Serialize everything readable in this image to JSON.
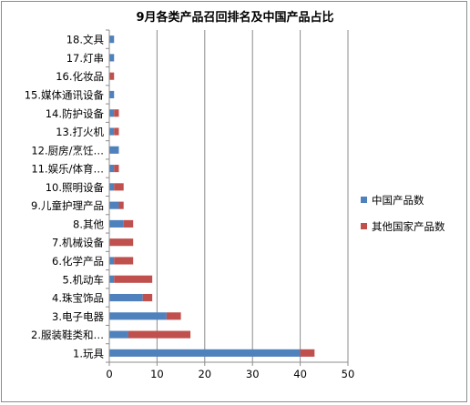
{
  "chart_data": {
    "type": "bar",
    "orientation": "horizontal",
    "stacked": true,
    "title": "9月各类产品召回排名及中国产品占比",
    "xlabel": "",
    "ylabel": "",
    "xlim": [
      0,
      50
    ],
    "x_ticks": [
      "0",
      "10",
      "20",
      "30",
      "40",
      "50"
    ],
    "grid": "vertical major gridlines",
    "legend_position": "right",
    "categories": [
      "1.玩具",
      "2.服装鞋类和…",
      "3.电子电器",
      "4.珠宝饰品",
      "5.机动车",
      "6.化学产品",
      "7.机械设备",
      "8.其他",
      "9.儿童护理产品",
      "10.照明设备",
      "11.娱乐/体育…",
      "12.厨房/烹饪…",
      "13.打火机",
      "14.防护设备",
      "15.媒体通讯设备",
      "16.化妆品",
      "17.灯串",
      "18.文具"
    ],
    "series": [
      {
        "name": "中国产品数",
        "color": "#4f81bd",
        "values": [
          40,
          4,
          12,
          7,
          1,
          1,
          0,
          3,
          2,
          1,
          1,
          2,
          1,
          1,
          1,
          0,
          1,
          1
        ]
      },
      {
        "name": "其他国家产品数",
        "color": "#c0504d",
        "values": [
          3,
          13,
          3,
          2,
          8,
          4,
          5,
          2,
          1,
          2,
          1,
          0,
          1,
          1,
          0,
          1,
          0,
          0
        ]
      }
    ]
  }
}
